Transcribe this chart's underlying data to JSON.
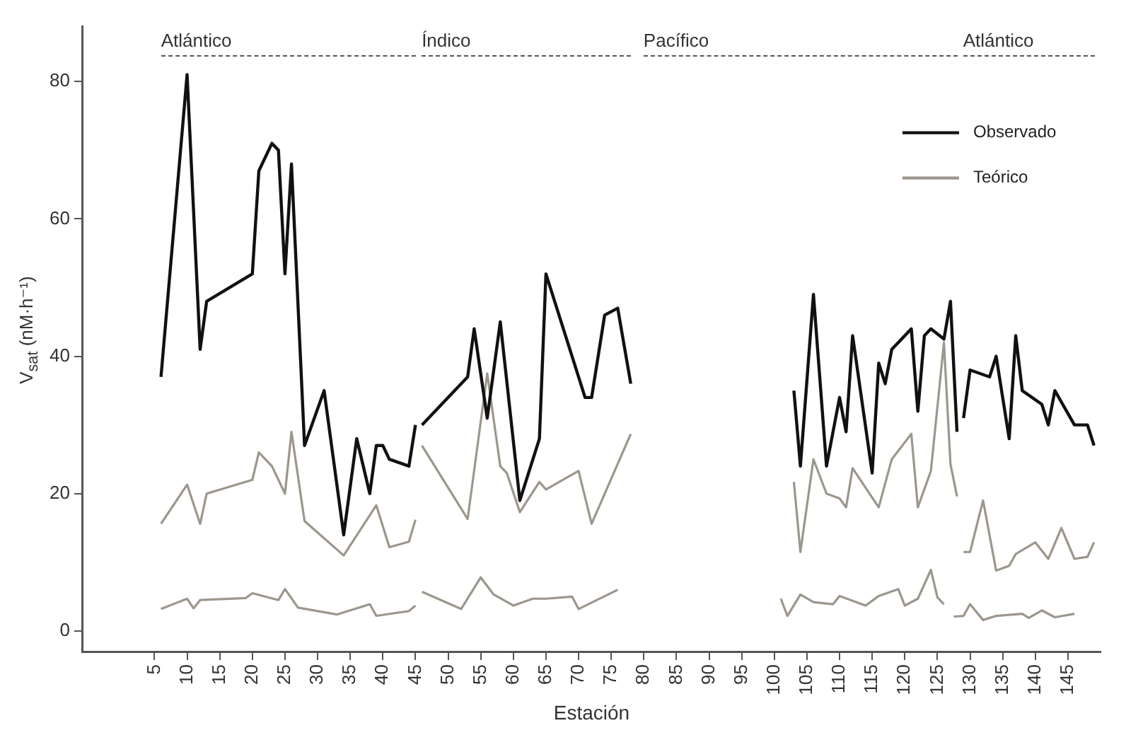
{
  "chart_data": {
    "type": "line",
    "xlabel": "Estación",
    "ylabel": "V$_{sat}$ (nM·h⁻¹)",
    "xlim": [
      -6,
      150
    ],
    "xticks": [
      5,
      10,
      15,
      20,
      25,
      30,
      35,
      40,
      45,
      50,
      55,
      60,
      65,
      70,
      75,
      80,
      85,
      90,
      95,
      100,
      105,
      110,
      115,
      120,
      125,
      130,
      135,
      140,
      145
    ],
    "ylim": [
      -3,
      88
    ],
    "yticks": [
      0,
      20,
      40,
      60,
      80
    ],
    "grid": false,
    "legend": "top right",
    "marker": "none",
    "line_style": "solid",
    "annotations": [
      "Atlántico",
      "Índico",
      "Pacífico",
      "Atlántico"
    ],
    "series": [
      {
        "name": "Observado",
        "color": "#111111",
        "x": [
          6,
          10,
          12,
          13,
          20,
          21,
          23,
          24,
          25,
          26,
          28,
          31,
          34,
          36,
          38,
          39,
          40,
          41,
          44,
          45,
          45.5,
          46,
          53,
          54,
          56,
          58,
          61,
          64,
          65,
          71,
          72,
          74,
          76,
          78,
          90,
          103,
          104,
          106,
          108,
          110,
          111,
          112,
          115,
          116,
          117,
          118,
          121,
          122,
          123,
          124,
          126,
          127,
          128,
          128.7,
          129,
          130,
          133,
          134,
          136,
          137,
          138,
          141,
          142,
          143,
          146,
          148,
          149
        ],
        "values": [
          37,
          81,
          41,
          48,
          52,
          67,
          71,
          70,
          52,
          68,
          27,
          35,
          14,
          28,
          20,
          27,
          27,
          25,
          24,
          30,
          null,
          30,
          37,
          44,
          31,
          45,
          19,
          28,
          52,
          34,
          34,
          46,
          47,
          36,
          null,
          35,
          24,
          49,
          24,
          34,
          29,
          43,
          23,
          39,
          36,
          41,
          44,
          32,
          43,
          44,
          42.5,
          48,
          29,
          null,
          31,
          38,
          37,
          40,
          28,
          43,
          35,
          33,
          30,
          35,
          30,
          30,
          27
        ]
      },
      {
        "name": "Teórico",
        "color": "#9c968c",
        "x": [
          6,
          10,
          12,
          13,
          20,
          21,
          23,
          25,
          26,
          28,
          34,
          39,
          41,
          44,
          45,
          45.5,
          46,
          53,
          56,
          58,
          59,
          61,
          64,
          65,
          70,
          72,
          78,
          90,
          103,
          104,
          106,
          108,
          110,
          111,
          112,
          116,
          118,
          121,
          122,
          124,
          126,
          127,
          128,
          128.7,
          129,
          130,
          132,
          134,
          136,
          137,
          140,
          142,
          144,
          146,
          148,
          149
        ],
        "values": [
          15.6,
          21.3,
          15.6,
          20,
          22,
          26,
          24,
          20,
          29,
          16,
          11,
          18.3,
          12.2,
          13,
          16.2,
          null,
          27,
          16.3,
          37.5,
          24,
          23,
          17.3,
          21.7,
          20.6,
          23.3,
          15.6,
          28.7,
          null,
          21.7,
          11.5,
          25,
          20,
          19.3,
          18,
          23.7,
          18,
          25,
          28.7,
          18,
          23.3,
          42,
          24.3,
          19.6,
          null,
          11.5,
          11.5,
          19,
          8.8,
          9.5,
          11.2,
          12.9,
          10.5,
          15,
          10.5,
          10.8,
          12.9
        ]
      },
      {
        "color": "#9c968c",
        "x": [
          6,
          10,
          11,
          12,
          19,
          20,
          24,
          25,
          27,
          33,
          38,
          39,
          44,
          45,
          45.5,
          46,
          52,
          55,
          57,
          60,
          63,
          65,
          69,
          70,
          76,
          90,
          101,
          102,
          104,
          106,
          109,
          110,
          114,
          116,
          119,
          120,
          122,
          124,
          125,
          126,
          126.8,
          127.5,
          129,
          130,
          132,
          134,
          138,
          139,
          141,
          143,
          146
        ],
        "values": [
          3.2,
          4.7,
          3.3,
          4.5,
          4.8,
          5.5,
          4.5,
          6.1,
          3.4,
          2.4,
          3.9,
          2.2,
          2.9,
          3.7,
          null,
          5.7,
          3.2,
          7.8,
          5.3,
          3.7,
          4.7,
          4.7,
          5,
          3.2,
          6,
          null,
          4.7,
          2.2,
          5.3,
          4.2,
          3.9,
          5.1,
          3.7,
          5.1,
          6.1,
          3.7,
          4.7,
          8.9,
          4.9,
          3.9,
          null,
          2.1,
          2.2,
          3.9,
          1.6,
          2.2,
          2.5,
          1.9,
          3,
          2,
          2.5
        ]
      }
    ]
  }
}
